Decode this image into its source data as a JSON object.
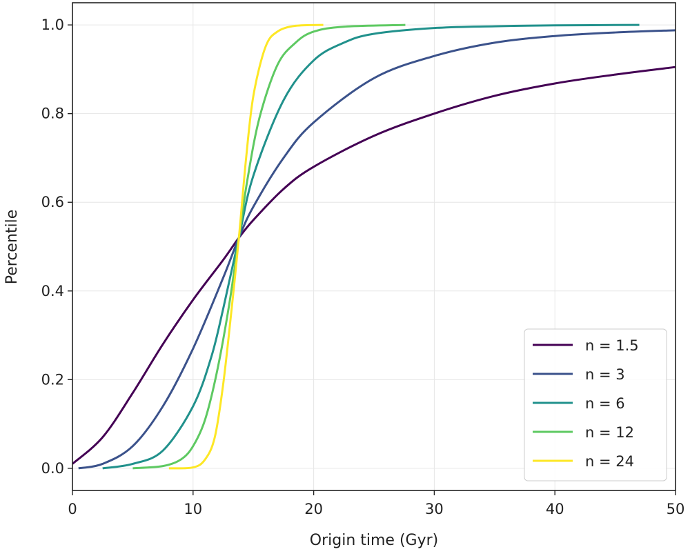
{
  "chart_data": {
    "type": "line",
    "title": "",
    "xlabel": "Origin time (Gyr)",
    "ylabel": "Percentile",
    "xlim": [
      0,
      50
    ],
    "ylim": [
      -0.05,
      1.05
    ],
    "xticks": [
      0,
      10,
      20,
      30,
      40,
      50
    ],
    "xtick_labels": [
      "0",
      "10",
      "20",
      "30",
      "40",
      "50"
    ],
    "yticks": [
      0,
      0.2,
      0.4,
      0.6,
      0.8,
      1.0
    ],
    "ytick_labels": [
      "0.0",
      "0.2",
      "0.4",
      "0.6",
      "0.8",
      "1.0"
    ],
    "grid": true,
    "legend_position": "lower-right",
    "series": [
      {
        "name": "n = 1.5",
        "color": "#440154",
        "x": [
          0,
          2.5,
          5,
          7.5,
          10,
          12.5,
          13.8,
          15,
          17.5,
          20,
          25,
          30,
          35,
          40,
          45,
          50
        ],
        "y": [
          0.01,
          0.07,
          0.17,
          0.28,
          0.38,
          0.47,
          0.52,
          0.56,
          0.63,
          0.68,
          0.75,
          0.8,
          0.84,
          0.868,
          0.888,
          0.905
        ]
      },
      {
        "name": "n = 3",
        "color": "#3b528b",
        "x": [
          0.5,
          2.5,
          5,
          7.5,
          10,
          12.5,
          13.8,
          15,
          17.5,
          20,
          25,
          30,
          35,
          40,
          45,
          50
        ],
        "y": [
          0,
          0.01,
          0.05,
          0.14,
          0.27,
          0.43,
          0.52,
          0.59,
          0.7,
          0.78,
          0.88,
          0.93,
          0.96,
          0.975,
          0.983,
          0.988
        ]
      },
      {
        "name": "n = 6",
        "color": "#21918c",
        "x": [
          2.5,
          5,
          7.5,
          10,
          11.5,
          12.5,
          13.8,
          15,
          17.5,
          20,
          22.5,
          25,
          30,
          35,
          40,
          47
        ],
        "y": [
          0,
          0.01,
          0.04,
          0.14,
          0.25,
          0.36,
          0.52,
          0.66,
          0.83,
          0.92,
          0.96,
          0.98,
          0.993,
          0.997,
          0.999,
          1.0
        ]
      },
      {
        "name": "n = 12",
        "color": "#5ec962",
        "x": [
          5,
          7.5,
          9,
          10,
          11,
          12,
          13,
          13.8,
          14.5,
          15.5,
          17,
          18.5,
          20,
          22.5,
          27.6
        ],
        "y": [
          0,
          0.005,
          0.02,
          0.05,
          0.11,
          0.22,
          0.37,
          0.52,
          0.65,
          0.79,
          0.91,
          0.96,
          0.985,
          0.996,
          1.0
        ]
      },
      {
        "name": "n = 24",
        "color": "#fde725",
        "x": [
          8,
          10,
          11,
          11.8,
          12.5,
          13.2,
          13.8,
          14.4,
          15,
          16,
          17,
          18.5,
          20.8
        ],
        "y": [
          0,
          0.002,
          0.02,
          0.07,
          0.19,
          0.36,
          0.52,
          0.7,
          0.84,
          0.95,
          0.985,
          0.998,
          1.0
        ]
      }
    ]
  }
}
